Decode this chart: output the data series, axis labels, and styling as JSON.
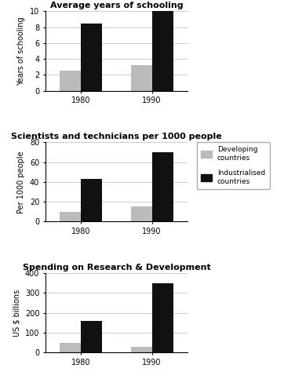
{
  "chart1": {
    "title": "Average years of schooling",
    "ylabel": "Years of schooling",
    "ylim": [
      0,
      10
    ],
    "yticks": [
      0,
      2,
      4,
      6,
      8,
      10
    ],
    "years": [
      "1980",
      "1990"
    ],
    "developing": [
      2.5,
      3.2
    ],
    "industrialised": [
      8.5,
      10.5
    ]
  },
  "chart2": {
    "title": "Scientists and technicians per 1000 people",
    "ylabel": "Per 1000 people",
    "ylim": [
      0,
      80
    ],
    "yticks": [
      0,
      20,
      40,
      60,
      80
    ],
    "years": [
      "1980",
      "1990"
    ],
    "developing": [
      10,
      15
    ],
    "industrialised": [
      43,
      70
    ]
  },
  "chart3": {
    "title": "Spending on Research & Development",
    "ylabel": "US $ billions",
    "ylim": [
      0,
      400
    ],
    "yticks": [
      0,
      100,
      200,
      300,
      400
    ],
    "years": [
      "1980",
      "1990"
    ],
    "developing": [
      50,
      30
    ],
    "industrialised": [
      160,
      350
    ]
  },
  "legend": {
    "developing_label": "Developing\ncountries",
    "industrialised_label": "Industrialised\ncountries",
    "developing_color": "#bbbbbb",
    "industrialised_color": "#111111"
  },
  "bar_width": 0.3,
  "background_color": "#ffffff",
  "title_fontsize": 8,
  "label_fontsize": 7,
  "tick_fontsize": 7,
  "grid_color": "#cccccc"
}
